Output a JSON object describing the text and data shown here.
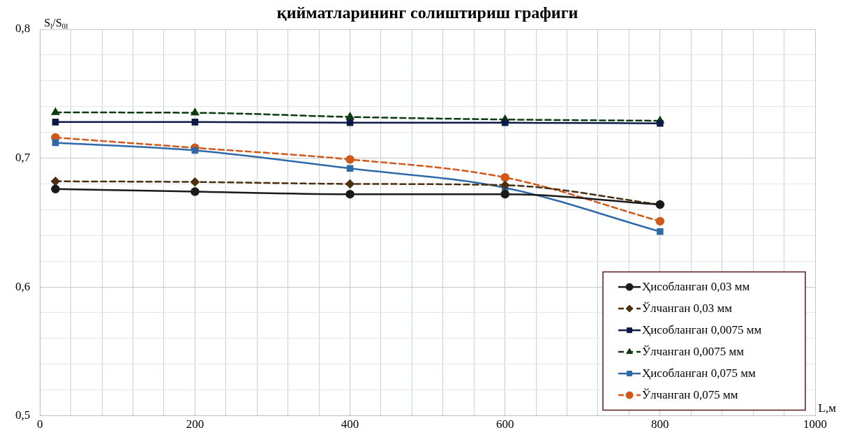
{
  "chart_data": {
    "type": "line",
    "title": "қийматларининг солиштириш графиги",
    "xlabel": "L,м",
    "ylabel": "S$_{l}$/S$_{0l}$",
    "x": [
      20,
      200,
      400,
      600,
      800
    ],
    "xlim": [
      0,
      1000
    ],
    "xticks": [
      0,
      {
        "value": 40,
        "label": null
      },
      {
        "value": 80,
        "label": null
      },
      {
        "value": 120,
        "label": null
      },
      {
        "value": 160,
        "label": null
      },
      200,
      {
        "value": 240,
        "label": null
      },
      {
        "value": 280,
        "label": null
      },
      {
        "value": 320,
        "label": null
      },
      {
        "value": 360,
        "label": null
      },
      400,
      {
        "value": 440,
        "label": null
      },
      {
        "value": 480,
        "label": null
      },
      {
        "value": 520,
        "label": null
      },
      {
        "value": 560,
        "label": null
      },
      600,
      {
        "value": 640,
        "label": null
      },
      {
        "value": 680,
        "label": null
      },
      {
        "value": 720,
        "label": null
      },
      {
        "value": 760,
        "label": null
      },
      800,
      {
        "value": 840,
        "label": null
      },
      {
        "value": 880,
        "label": null
      },
      {
        "value": 920,
        "label": null
      },
      {
        "value": 960,
        "label": null
      },
      1000
    ],
    "ylim": [
      0.5,
      0.8
    ],
    "yticks": [
      {
        "value": 0.5,
        "label": "0,5"
      },
      {
        "value": 0.52,
        "label": null
      },
      {
        "value": 0.54,
        "label": null
      },
      {
        "value": 0.56,
        "label": null
      },
      {
        "value": 0.58,
        "label": null
      },
      {
        "value": 0.6,
        "label": "0,6"
      },
      {
        "value": 0.62,
        "label": null
      },
      {
        "value": 0.64,
        "label": null
      },
      {
        "value": 0.66,
        "label": null
      },
      {
        "value": 0.68,
        "label": null
      },
      {
        "value": 0.7,
        "label": "0,7"
      },
      {
        "value": 0.72,
        "label": null
      },
      {
        "value": 0.74,
        "label": null
      },
      {
        "value": 0.76,
        "label": null
      },
      {
        "value": 0.78,
        "label": null
      },
      {
        "value": 0.8,
        "label": "0,8"
      }
    ],
    "grid": true,
    "legend": "bottom right",
    "series": [
      {
        "name": "Ҳисобланган 0,03 мм",
        "color": "#1a1a1a",
        "marker": "circle",
        "line_style": "solid",
        "values": [
          0.676,
          0.674,
          0.672,
          0.672,
          0.664
        ]
      },
      {
        "name": "Ўлчанган 0,03 мм",
        "color": "#4a3010",
        "marker": "diamond",
        "line_style": "dashed",
        "values": [
          0.682,
          0.6815,
          0.68,
          0.679,
          0.664
        ]
      },
      {
        "name": "Ҳисобланган 0,0075 мм",
        "color": "#0c1a48",
        "marker": "square",
        "line_style": "solid",
        "values": [
          0.728,
          0.728,
          0.7275,
          0.7275,
          0.727
        ]
      },
      {
        "name": "Ўлчанган 0,0075 мм",
        "color": "#0e3a10",
        "marker": "triangle",
        "line_style": "dashed",
        "values": [
          0.7355,
          0.7352,
          0.732,
          0.73,
          0.729
        ]
      },
      {
        "name": "Ҳисобланган 0,075 мм",
        "color": "#2e6aa8",
        "marker": "square",
        "line_style": "solid",
        "values": [
          0.712,
          0.706,
          0.692,
          0.677,
          0.643
        ]
      },
      {
        "name": "Ўлчанган 0,075 мм",
        "color": "#d0581a",
        "marker": "circle",
        "line_style": "dashed",
        "values": [
          0.716,
          0.708,
          0.699,
          0.685,
          0.651
        ]
      }
    ]
  }
}
